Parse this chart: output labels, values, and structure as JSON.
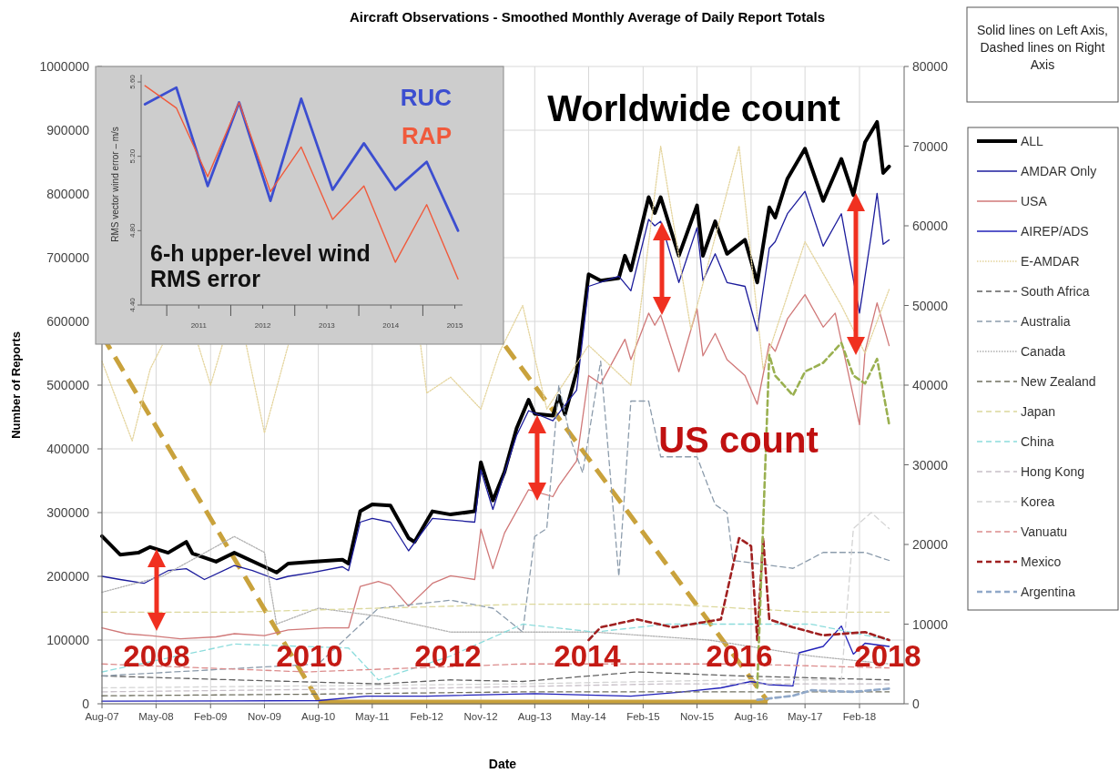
{
  "chart_data": [
    {
      "type": "line",
      "title": "Aircraft Observations - Smoothed Monthly Average of Daily Report Totals",
      "xlabel": "Date",
      "ylabel": "Number of Reports",
      "grid": true,
      "legend": "right",
      "annotations": [
        "Solid lines on Left Axis, Dashed lines on Right Axis",
        "Worldwide count",
        "US count",
        "2008",
        "2010",
        "2012",
        "2014",
        "2016",
        "2018"
      ],
      "xlim": [
        "2007-08",
        "2018-09-15"
      ],
      "xticks": [
        {
          "value": "2007-08",
          "label": "Aug-07"
        },
        {
          "value": "2008-05",
          "label": "May-08"
        },
        {
          "value": "2009-02",
          "label": "Feb-09"
        },
        {
          "value": "2009-11",
          "label": "Nov-09"
        },
        {
          "value": "2010-08",
          "label": "Aug-10"
        },
        {
          "value": "2011-05",
          "label": "May-11"
        },
        {
          "value": "2012-02",
          "label": "Feb-12"
        },
        {
          "value": "2012-11",
          "label": "Nov-12"
        },
        {
          "value": "2013-08",
          "label": "Aug-13"
        },
        {
          "value": "2014-05",
          "label": "May-14"
        },
        {
          "value": "2015-02",
          "label": "Feb-15"
        },
        {
          "value": "2015-11",
          "label": "Nov-15"
        },
        {
          "value": "2016-08",
          "label": "Aug-16"
        },
        {
          "value": "2017-05",
          "label": "May-17"
        },
        {
          "value": "2018-02",
          "label": "Feb-18"
        }
      ],
      "ylim": [
        0,
        1000000
      ],
      "yticks": [
        0,
        100000,
        200000,
        300000,
        400000,
        500000,
        600000,
        700000,
        800000,
        900000,
        1000000
      ],
      "y2lim": [
        0,
        80000
      ],
      "y2ticks": [
        0,
        10000,
        20000,
        30000,
        40000,
        50000,
        60000,
        70000,
        80000
      ],
      "series": [
        {
          "name": "ALL",
          "color": "#000000",
          "line_style": "solid",
          "x": [
            "2007-08",
            "2007-11",
            "2008-02",
            "2008-04",
            "2008-07",
            "2008-10",
            "2008-11",
            "2009-03",
            "2009-06",
            "2009-11",
            "2010-01",
            "2010-03",
            "2010-07",
            "2010-12",
            "2011-01",
            "2011-03",
            "2011-05",
            "2011-08",
            "2011-11",
            "2011-12",
            "2012-03",
            "2012-06",
            "2012-10",
            "2012-11",
            "2013-01",
            "2013-03",
            "2013-05",
            "2013-07",
            "2013-08",
            "2013-11",
            "2013-12",
            "2014-01",
            "2014-03",
            "2014-05",
            "2014-07",
            "2014-10",
            "2014-11",
            "2014-12",
            "2015-03",
            "2015-04",
            "2015-05",
            "2015-08",
            "2015-11",
            "2015-12",
            "2016-02",
            "2016-04",
            "2016-07",
            "2016-09",
            "2016-11",
            "2016-12",
            "2017-02",
            "2017-05",
            "2017-08",
            "2017-11",
            "2018-01",
            "2018-03",
            "2018-05",
            "2018-06",
            "2018-07"
          ],
          "values": [
            263000,
            234000,
            237000,
            246000,
            237000,
            254000,
            236000,
            223000,
            237000,
            215000,
            206000,
            220000,
            223000,
            226000,
            220000,
            302000,
            313000,
            311000,
            260000,
            254000,
            302000,
            297000,
            302000,
            379000,
            319000,
            364000,
            432000,
            477000,
            455000,
            452000,
            483000,
            454000,
            521000,
            674000,
            664000,
            668000,
            703000,
            680000,
            795000,
            770000,
            795000,
            703000,
            782000,
            703000,
            757000,
            706000,
            728000,
            661000,
            779000,
            763000,
            824000,
            871000,
            789000,
            855000,
            798000,
            881000,
            913000,
            833000,
            843000
          ]
        },
        {
          "name": "AMDAR Only",
          "color": "#1c1c9c",
          "line_style": "solid",
          "x": [
            "2007-08",
            "2007-11",
            "2008-03",
            "2008-07",
            "2008-10",
            "2009-01",
            "2009-06",
            "2009-09",
            "2010-01",
            "2010-03",
            "2010-07",
            "2010-12",
            "2011-01",
            "2011-03",
            "2011-05",
            "2011-08",
            "2011-11",
            "2012-03",
            "2012-10",
            "2012-11",
            "2013-01",
            "2013-05",
            "2013-07",
            "2013-11",
            "2014-03",
            "2014-05",
            "2014-10",
            "2014-12",
            "2015-03",
            "2015-04",
            "2015-05",
            "2015-08",
            "2015-11",
            "2015-12",
            "2016-02",
            "2016-04",
            "2016-07",
            "2016-09",
            "2016-11",
            "2016-12",
            "2017-02",
            "2017-05",
            "2017-08",
            "2017-11",
            "2018-02",
            "2018-04",
            "2018-05",
            "2018-06",
            "2018-07"
          ],
          "values": [
            200000,
            195000,
            189000,
            209000,
            212000,
            195000,
            217000,
            209000,
            195000,
            200000,
            206000,
            215000,
            209000,
            285000,
            291000,
            285000,
            240000,
            291000,
            285000,
            367000,
            305000,
            421000,
            460000,
            444000,
            492000,
            655000,
            671000,
            648000,
            760000,
            750000,
            757000,
            661000,
            747000,
            664000,
            706000,
            661000,
            655000,
            585000,
            715000,
            725000,
            769000,
            804000,
            718000,
            769000,
            613000,
            734000,
            801000,
            721000,
            728000
          ]
        },
        {
          "name": "USA",
          "color": "#d07878",
          "line_style": "solid",
          "x": [
            "2007-08",
            "2007-12",
            "2008-04",
            "2008-09",
            "2009-03",
            "2009-06",
            "2009-11",
            "2010-03",
            "2010-09",
            "2011-01",
            "2011-03",
            "2011-06",
            "2011-08",
            "2011-11",
            "2012-03",
            "2012-06",
            "2012-10",
            "2012-11",
            "2013-01",
            "2013-03",
            "2013-07",
            "2013-11",
            "2013-12",
            "2014-03",
            "2014-05",
            "2014-07",
            "2014-11",
            "2014-12",
            "2015-03",
            "2015-04",
            "2015-05",
            "2015-08",
            "2015-11",
            "2015-12",
            "2016-02",
            "2016-04",
            "2016-07",
            "2016-09",
            "2016-11",
            "2016-12",
            "2017-02",
            "2017-05",
            "2017-08",
            "2017-10",
            "2018-02",
            "2018-03",
            "2018-05",
            "2018-07"
          ],
          "values": [
            119000,
            110000,
            107000,
            102000,
            105000,
            110000,
            107000,
            116000,
            119000,
            119000,
            184000,
            192000,
            186000,
            153000,
            189000,
            201000,
            195000,
            274000,
            212000,
            268000,
            336000,
            325000,
            342000,
            381000,
            515000,
            502000,
            572000,
            540000,
            613000,
            594000,
            610000,
            521000,
            620000,
            546000,
            581000,
            540000,
            515000,
            470000,
            565000,
            553000,
            604000,
            642000,
            591000,
            613000,
            438000,
            553000,
            629000,
            562000
          ]
        },
        {
          "name": "AIREP/ADS",
          "color": "#2020b8",
          "line_style": "solid",
          "x": [
            "2007-08",
            "2010-08",
            "2011-04",
            "2012-02",
            "2013-08",
            "2014-12",
            "2015-08",
            "2016-03",
            "2016-08",
            "2016-11",
            "2017-03",
            "2017-04",
            "2017-08",
            "2017-11",
            "2018-01",
            "2018-03",
            "2018-07"
          ],
          "values": [
            4000,
            5000,
            12000,
            12000,
            16000,
            12000,
            18000,
            25000,
            35000,
            30000,
            28000,
            80000,
            90000,
            122000,
            78000,
            95000,
            90000
          ]
        },
        {
          "name": "E-AMDAR",
          "color": "#e4d49c",
          "line_style": "dotted",
          "axis": "y2",
          "x": [
            "2007-08",
            "2008-01",
            "2008-04",
            "2008-06",
            "2008-10",
            "2008-12",
            "2009-02",
            "2009-04",
            "2009-06",
            "2009-08",
            "2009-11",
            "2010-03",
            "2010-08",
            "2012-01",
            "2012-02",
            "2012-06",
            "2012-11",
            "2013-02",
            "2013-06",
            "2013-10",
            "2014-05",
            "2014-12",
            "2015-05",
            "2015-10",
            "2016-06",
            "2016-10",
            "2017-05",
            "2017-11",
            "2018-03",
            "2018-07"
          ],
          "values": [
            43000,
            33000,
            42000,
            45000,
            null,
            45000,
            40000,
            45000,
            null,
            45000,
            34000,
            45000,
            null,
            45000,
            39000,
            41000,
            37000,
            44000,
            50000,
            37000,
            45000,
            40000,
            70000,
            47000,
            70000,
            42000,
            58000,
            50000,
            44000,
            52000
          ]
        },
        {
          "name": "South Africa",
          "color": "#606060",
          "line_style": "dashed",
          "axis": "y2",
          "x": [
            "2007-08",
            "2009-06",
            "2011-06",
            "2012-06",
            "2013-06",
            "2015-01",
            "2016-06",
            "2018-07"
          ],
          "values": [
            3500,
            3000,
            2500,
            3000,
            2800,
            4000,
            3500,
            3000
          ]
        },
        {
          "name": "Australia",
          "color": "#8c9cac",
          "line_style": "dashed",
          "axis": "y2",
          "x": [
            "2007-08",
            "2010-08",
            "2011-06",
            "2012-06",
            "2013-01",
            "2013-06",
            "2013-08",
            "2013-10",
            "2013-12",
            "2014-02",
            "2014-04",
            "2014-07",
            "2014-10",
            "2014-12",
            "2015-03",
            "2015-05",
            "2015-11",
            "2016-02",
            "2016-04",
            "2016-05",
            "2017-03",
            "2017-08",
            "2018-03",
            "2018-07"
          ],
          "values": [
            3500,
            5000,
            12000,
            13000,
            12000,
            9000,
            21000,
            22000,
            40000,
            33000,
            29000,
            43000,
            16000,
            38000,
            38000,
            31000,
            31000,
            25000,
            24000,
            18000,
            17000,
            19000,
            19000,
            18000
          ]
        },
        {
          "name": "Canada",
          "color": "#b0b0b0",
          "line_style": "dotted",
          "axis": "y2",
          "x": [
            "2007-08",
            "2008-06",
            "2009-06",
            "2009-11",
            "2010-01",
            "2010-08",
            "2011-06",
            "2012-06",
            "2013-06",
            "2014-06",
            "2016-01",
            "2017-06",
            "2018-07"
          ],
          "values": [
            14000,
            16000,
            21000,
            19000,
            10000,
            12000,
            11000,
            9000,
            9000,
            9000,
            8000,
            6000,
            5000
          ]
        },
        {
          "name": "New Zealand",
          "color": "#707060",
          "line_style": "dashed",
          "axis": "y2",
          "x": [
            "2007-08",
            "2010-06",
            "2013-06",
            "2016-06",
            "2018-07"
          ],
          "values": [
            1000,
            1200,
            1500,
            1500,
            1500
          ]
        },
        {
          "name": "Japan",
          "color": "#dcd89c",
          "line_style": "dashed",
          "axis": "y2",
          "x": [
            "2007-08",
            "2009-06",
            "2011-06",
            "2013-06",
            "2015-06",
            "2017-06",
            "2018-07"
          ],
          "values": [
            11500,
            11500,
            12000,
            12500,
            12500,
            11500,
            11500
          ]
        },
        {
          "name": "China",
          "color": "#8cdcdc",
          "line_style": "dashed",
          "axis": "y2",
          "x": [
            "2007-08",
            "2009-06",
            "2011-01",
            "2011-06",
            "2012-06",
            "2013-06",
            "2014-06",
            "2015-06",
            "2016-06",
            "2017-06",
            "2018-07"
          ],
          "values": [
            4000,
            7500,
            7000,
            3000,
            6000,
            10000,
            9000,
            10000,
            10000,
            10000,
            8000
          ]
        },
        {
          "name": "Hong Kong",
          "color": "#c8c0c8",
          "line_style": "dashed",
          "axis": "y2",
          "x": [
            "2007-08",
            "2012-06",
            "2015-06",
            "2018-07"
          ],
          "values": [
            1500,
            2000,
            2500,
            2500
          ]
        },
        {
          "name": "Korea",
          "color": "#d4d4d4",
          "line_style": "dashed",
          "axis": "y2",
          "x": [
            "2007-08",
            "2013-06",
            "2016-06",
            "2017-11",
            "2018-01",
            "2018-04",
            "2018-07"
          ],
          "values": [
            2000,
            2500,
            3000,
            3000,
            22000,
            24000,
            22000
          ]
        },
        {
          "name": "Vanuatu",
          "color": "#dc8c8c",
          "line_style": "dashed",
          "axis": "y2",
          "x": [
            "2007-08",
            "2010-06",
            "2013-06",
            "2016-06",
            "2018-07"
          ],
          "values": [
            5000,
            4000,
            5000,
            5000,
            4500
          ]
        },
        {
          "name": "Mexico",
          "color": "#a02020",
          "line_style": "dashed",
          "axis": "y2",
          "x": [
            "2014-05",
            "2014-07",
            "2015-01",
            "2015-07",
            "2016-03",
            "2016-06",
            "2016-08",
            "2016-09",
            "2016-10",
            "2016-11",
            "2017-03",
            "2017-08",
            "2018-03",
            "2018-07"
          ],
          "values": [
            8000,
            9600,
            10600,
            9600,
            10600,
            20800,
            19800,
            8000,
            20800,
            10600,
            9600,
            8600,
            9000,
            8000
          ]
        },
        {
          "name": "Argentina",
          "color": "#90a8c8",
          "line_style": "dashed",
          "axis": "y2",
          "x": [
            "2016-09",
            "2017-03",
            "2017-06",
            "2018-01",
            "2018-07"
          ],
          "values": [
            500,
            1000,
            1700,
            1500,
            1900
          ]
        },
        {
          "color": "#9ab050",
          "line_style": "dashed",
          "axis": "y2",
          "x": [
            "2016-09",
            "2016-11",
            "2016-12",
            "2017-03",
            "2017-05",
            "2017-08",
            "2017-11",
            "2018-01",
            "2018-03",
            "2018-05",
            "2018-07"
          ],
          "values": [
            2000,
            43800,
            41200,
            38700,
            41700,
            42800,
            45300,
            41200,
            40200,
            43300,
            35100
          ]
        }
      ]
    },
    {
      "type": "line",
      "ylabel": "RMS vector wind error – m/s",
      "annotations": [
        "6-h upper-level wind RMS error"
      ],
      "xlim": [
        2010.1,
        2015.12
      ],
      "xticks": [
        {
          "value": 2010.5,
          "label": null
        },
        2011,
        {
          "value": 2011.5,
          "label": null
        },
        2012,
        {
          "value": 2012.5,
          "label": null
        },
        2013,
        {
          "value": 2013.5,
          "label": null
        },
        2014,
        {
          "value": 2014.5,
          "label": null
        },
        2015
      ],
      "ylim": [
        4.4,
        5.6
      ],
      "yticks": [
        {
          "value": 4.4,
          "label": "4.40"
        },
        {
          "value": 4.8,
          "label": "4.80"
        },
        {
          "value": 5.2,
          "label": "5.20"
        },
        {
          "value": 5.6,
          "label": "5.60"
        }
      ],
      "series": [
        {
          "name": "RUC",
          "color": "#3c4ed0",
          "x": [
            2010.16,
            2010.65,
            2011.14,
            2011.63,
            2012.12,
            2012.6,
            2013.09,
            2013.58,
            2014.07,
            2014.56,
            2015.05
          ],
          "values": [
            5.48,
            5.57,
            5.04,
            5.49,
            4.96,
            5.51,
            5.02,
            5.27,
            5.02,
            5.17,
            4.8
          ]
        },
        {
          "name": "RAP",
          "color": "#f05a3c",
          "x": [
            2010.16,
            2010.65,
            2011.14,
            2011.63,
            2012.12,
            2012.6,
            2013.09,
            2013.58,
            2014.07,
            2014.56,
            2015.05
          ],
          "values": [
            5.58,
            5.46,
            5.09,
            5.49,
            5.01,
            5.25,
            4.86,
            5.04,
            4.63,
            4.94,
            4.54
          ]
        }
      ]
    }
  ]
}
